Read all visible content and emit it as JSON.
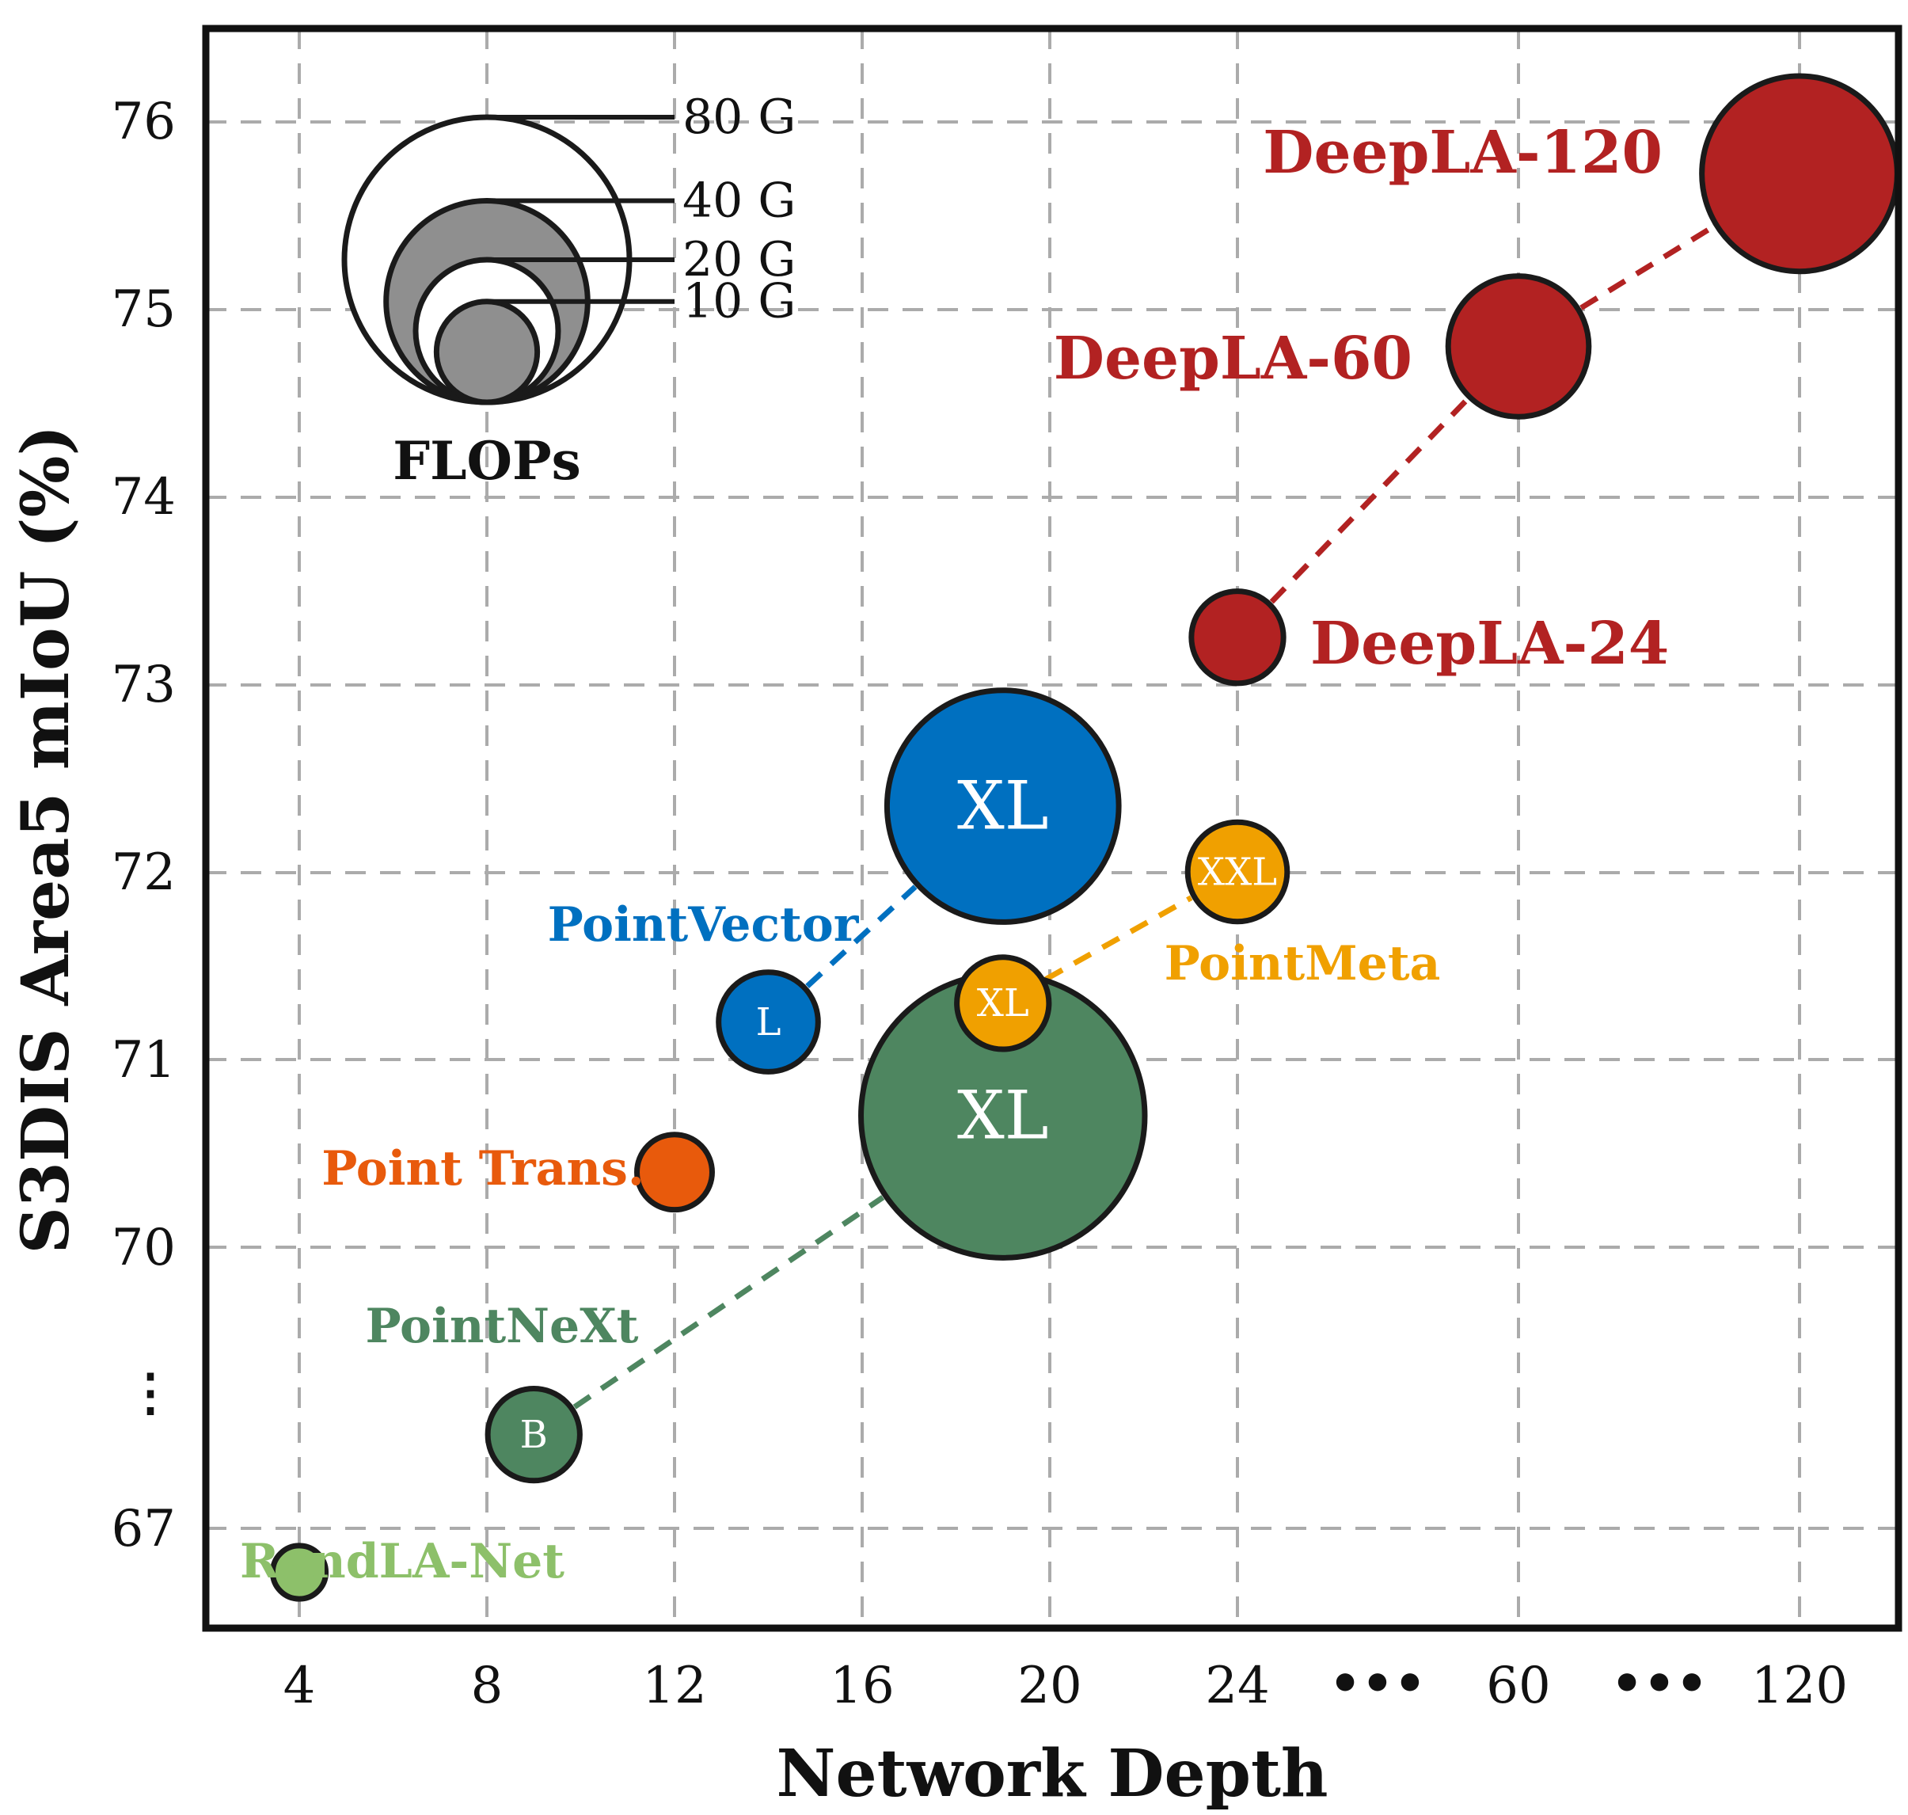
{
  "chart_data": {
    "type": "scatter",
    "title": "",
    "xlabel": "Network Depth",
    "ylabel": "S3DIS Area5 mIoU (%)",
    "x_ticks": [
      "4",
      "8",
      "12",
      "16",
      "20",
      "24",
      "60",
      "120"
    ],
    "x_breaks": [
      "•••",
      "•••"
    ],
    "y_ticks": [
      "67",
      "70",
      "71",
      "72",
      "73",
      "74",
      "75",
      "76"
    ],
    "y_break": "⋮",
    "grid": true,
    "size_legend": {
      "title": "FLOPs",
      "entries": [
        {
          "label": "80 G",
          "gflops": 80
        },
        {
          "label": "40 G",
          "gflops": 40
        },
        {
          "label": "20 G",
          "gflops": 20
        },
        {
          "label": "10 G",
          "gflops": 10
        }
      ]
    },
    "series": [
      {
        "name": "DeepLA",
        "color": "#B22222",
        "points": [
          {
            "x": 24,
            "y": 73.25,
            "gflops": 6,
            "label": "DeepLA-24"
          },
          {
            "x": 60,
            "y": 74.8,
            "gflops": 14,
            "label": "DeepLA-60"
          },
          {
            "x": 120,
            "y": 75.72,
            "gflops": 27,
            "label": "DeepLA-120"
          }
        ]
      },
      {
        "name": "PointVector",
        "color": "#0070C0",
        "points": [
          {
            "x": 14,
            "y": 71.2,
            "gflops": 7,
            "label": "L"
          },
          {
            "x": 19,
            "y": 72.35,
            "gflops": 38,
            "label": "XL"
          }
        ]
      },
      {
        "name": "PointMeta",
        "color": "#F0A000",
        "points": [
          {
            "x": 19,
            "y": 71.3,
            "gflops": 6,
            "label": "XL"
          },
          {
            "x": 24,
            "y": 72.0,
            "gflops": 7,
            "label": "XXL"
          }
        ]
      },
      {
        "name": "PointNeXt",
        "color": "#4E8660",
        "points": [
          {
            "x": 9,
            "y": 68.0,
            "gflops": 6,
            "label": "B"
          },
          {
            "x": 19,
            "y": 70.7,
            "gflops": 57,
            "label": "XL"
          }
        ]
      },
      {
        "name": "Point Trans.",
        "color": "#E85A0C",
        "points": [
          {
            "x": 12,
            "y": 70.4,
            "gflops": 4,
            "label": ""
          }
        ]
      },
      {
        "name": "RandLA-Net",
        "color": "#8DC06A",
        "points": [
          {
            "x": 4,
            "y": 66.5,
            "gflops": 2,
            "label": ""
          }
        ]
      }
    ]
  }
}
